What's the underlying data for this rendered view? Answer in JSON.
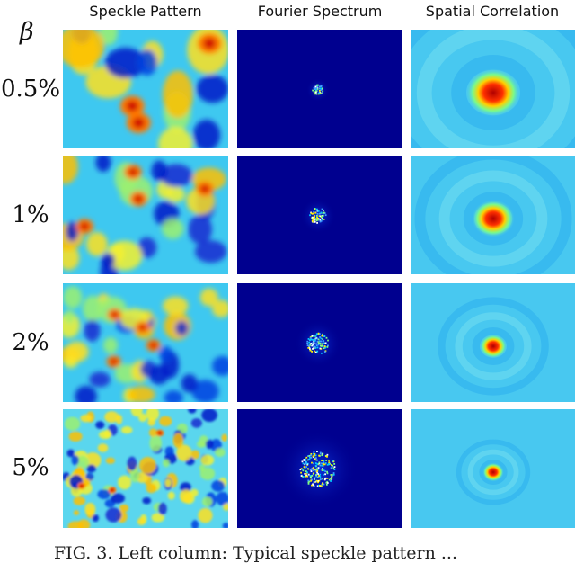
{
  "figure": {
    "column_headers": [
      "Speckle Pattern",
      "Fourier Spectrum",
      "Spatial Correlation"
    ],
    "row_axis_symbol": "β",
    "rows": [
      {
        "label": "0.5%"
      },
      {
        "label": "1%"
      },
      {
        "label": "2%"
      },
      {
        "label": "5%"
      }
    ],
    "caption": "FIG. 3. Left column: Typical speckle pattern ...",
    "colormap": [
      "#00008f",
      "#0050ff",
      "#00c8ff",
      "#80ff80",
      "#ffee00",
      "#ff4000",
      "#a00000"
    ]
  }
}
